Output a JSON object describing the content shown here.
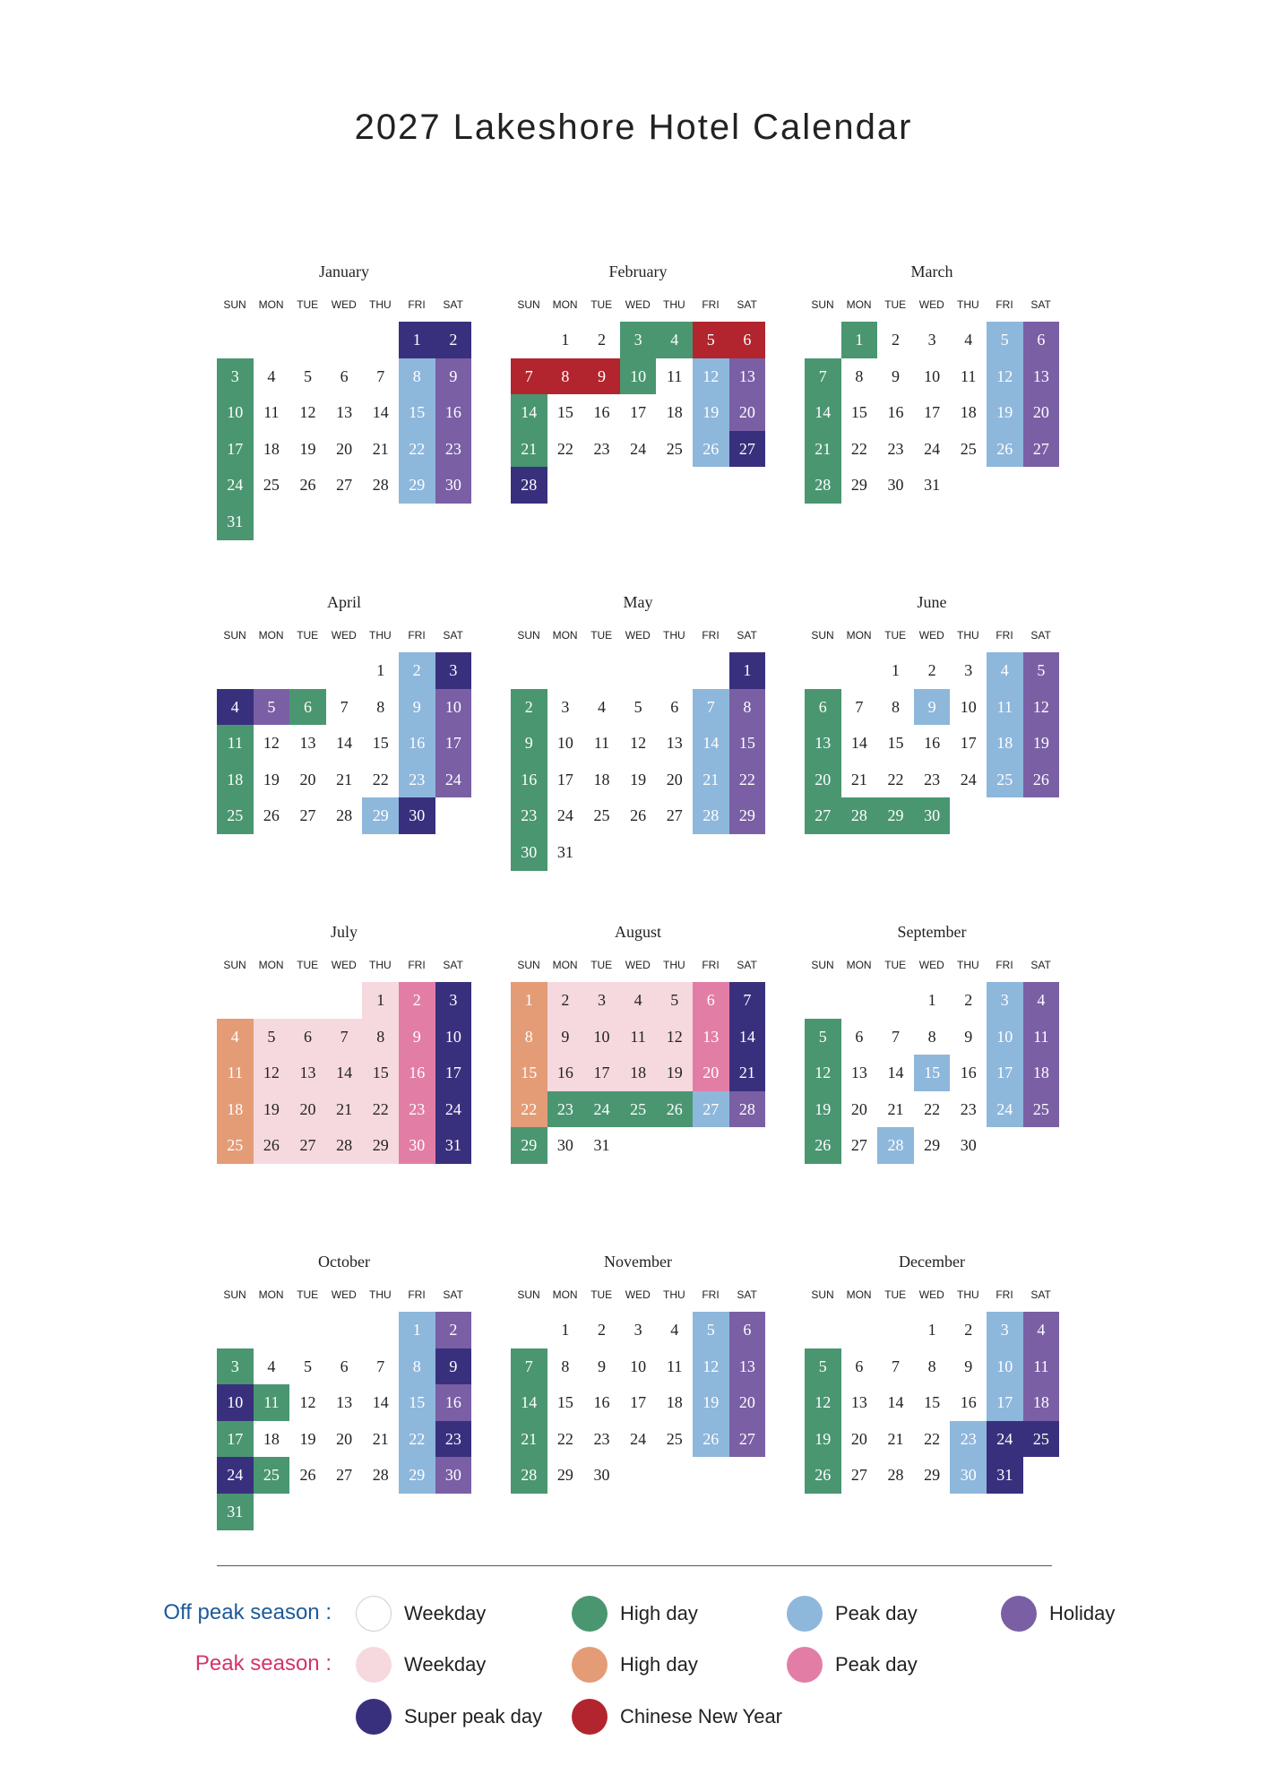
{
  "title": "2027 Lakeshore Hotel Calendar",
  "weekday_labels": [
    "SUN",
    "MON",
    "TUE",
    "WED",
    "THU",
    "FRI",
    "SAT"
  ],
  "colors": {
    "weekday_off": "#ffffff",
    "high_off": "#4a9671",
    "peak_off": "#8eb7dc",
    "holiday_off": "#7a5fa5",
    "weekday_peak": "#f6d9de",
    "high_peak": "#e49c77",
    "peak_peak": "#e27ea6",
    "super_peak": "#39307d",
    "cny": "#b2252e"
  },
  "calendar": [
    {
      "name": "January",
      "start_dow": 5,
      "days": 31,
      "types": [
        "super_peak",
        "super_peak",
        "high_off",
        "weekday_off",
        "weekday_off",
        "weekday_off",
        "weekday_off",
        "peak_off",
        "holiday_off",
        "high_off",
        "weekday_off",
        "weekday_off",
        "weekday_off",
        "weekday_off",
        "peak_off",
        "holiday_off",
        "high_off",
        "weekday_off",
        "weekday_off",
        "weekday_off",
        "weekday_off",
        "peak_off",
        "holiday_off",
        "high_off",
        "weekday_off",
        "weekday_off",
        "weekday_off",
        "weekday_off",
        "peak_off",
        "holiday_off",
        "high_off"
      ]
    },
    {
      "name": "February",
      "start_dow": 1,
      "days": 28,
      "types": [
        "weekday_off",
        "weekday_off",
        "high_off",
        "high_off",
        "cny",
        "cny",
        "cny",
        "cny",
        "cny",
        "high_off",
        "weekday_off",
        "peak_off",
        "holiday_off",
        "high_off",
        "weekday_off",
        "weekday_off",
        "weekday_off",
        "weekday_off",
        "peak_off",
        "holiday_off",
        "high_off",
        "weekday_off",
        "weekday_off",
        "weekday_off",
        "weekday_off",
        "peak_off",
        "super_peak",
        "super_peak"
      ]
    },
    {
      "name": "March",
      "start_dow": 1,
      "days": 31,
      "types": [
        "high_off",
        "weekday_off",
        "weekday_off",
        "weekday_off",
        "peak_off",
        "holiday_off",
        "high_off",
        "weekday_off",
        "weekday_off",
        "weekday_off",
        "weekday_off",
        "peak_off",
        "holiday_off",
        "high_off",
        "weekday_off",
        "weekday_off",
        "weekday_off",
        "weekday_off",
        "peak_off",
        "holiday_off",
        "high_off",
        "weekday_off",
        "weekday_off",
        "weekday_off",
        "weekday_off",
        "peak_off",
        "holiday_off",
        "high_off",
        "weekday_off",
        "weekday_off",
        "weekday_off"
      ]
    },
    {
      "name": "April",
      "start_dow": 4,
      "days": 30,
      "types": [
        "weekday_off",
        "peak_off",
        "super_peak",
        "super_peak",
        "holiday_off",
        "high_off",
        "weekday_off",
        "weekday_off",
        "peak_off",
        "holiday_off",
        "high_off",
        "weekday_off",
        "weekday_off",
        "weekday_off",
        "weekday_off",
        "peak_off",
        "holiday_off",
        "high_off",
        "weekday_off",
        "weekday_off",
        "weekday_off",
        "weekday_off",
        "peak_off",
        "holiday_off",
        "high_off",
        "weekday_off",
        "weekday_off",
        "weekday_off",
        "peak_off",
        "super_peak"
      ]
    },
    {
      "name": "May",
      "start_dow": 6,
      "days": 31,
      "types": [
        "super_peak",
        "high_off",
        "weekday_off",
        "weekday_off",
        "weekday_off",
        "weekday_off",
        "peak_off",
        "holiday_off",
        "high_off",
        "weekday_off",
        "weekday_off",
        "weekday_off",
        "weekday_off",
        "peak_off",
        "holiday_off",
        "high_off",
        "weekday_off",
        "weekday_off",
        "weekday_off",
        "weekday_off",
        "peak_off",
        "holiday_off",
        "high_off",
        "weekday_off",
        "weekday_off",
        "weekday_off",
        "weekday_off",
        "peak_off",
        "holiday_off",
        "high_off",
        "weekday_off"
      ]
    },
    {
      "name": "June",
      "start_dow": 2,
      "days": 30,
      "types": [
        "weekday_off",
        "weekday_off",
        "weekday_off",
        "peak_off",
        "holiday_off",
        "high_off",
        "weekday_off",
        "weekday_off",
        "peak_off",
        "weekday_off",
        "peak_off",
        "holiday_off",
        "high_off",
        "weekday_off",
        "weekday_off",
        "weekday_off",
        "weekday_off",
        "peak_off",
        "holiday_off",
        "high_off",
        "weekday_off",
        "weekday_off",
        "weekday_off",
        "weekday_off",
        "peak_off",
        "holiday_off",
        "high_off",
        "high_off",
        "high_off",
        "high_off"
      ]
    },
    {
      "name": "July",
      "start_dow": 4,
      "days": 31,
      "types": [
        "weekday_peak",
        "peak_peak",
        "super_peak",
        "high_peak",
        "weekday_peak",
        "weekday_peak",
        "weekday_peak",
        "weekday_peak",
        "peak_peak",
        "super_peak",
        "high_peak",
        "weekday_peak",
        "weekday_peak",
        "weekday_peak",
        "weekday_peak",
        "peak_peak",
        "super_peak",
        "high_peak",
        "weekday_peak",
        "weekday_peak",
        "weekday_peak",
        "weekday_peak",
        "peak_peak",
        "super_peak",
        "high_peak",
        "weekday_peak",
        "weekday_peak",
        "weekday_peak",
        "weekday_peak",
        "peak_peak",
        "super_peak"
      ]
    },
    {
      "name": "August",
      "start_dow": 0,
      "days": 31,
      "types": [
        "high_peak",
        "weekday_peak",
        "weekday_peak",
        "weekday_peak",
        "weekday_peak",
        "peak_peak",
        "super_peak",
        "high_peak",
        "weekday_peak",
        "weekday_peak",
        "weekday_peak",
        "weekday_peak",
        "peak_peak",
        "super_peak",
        "high_peak",
        "weekday_peak",
        "weekday_peak",
        "weekday_peak",
        "weekday_peak",
        "peak_peak",
        "super_peak",
        "high_peak",
        "high_off",
        "high_off",
        "high_off",
        "high_off",
        "peak_off",
        "holiday_off",
        "high_off",
        "weekday_off",
        "weekday_off"
      ]
    },
    {
      "name": "September",
      "start_dow": 3,
      "days": 30,
      "types": [
        "weekday_off",
        "weekday_off",
        "peak_off",
        "holiday_off",
        "high_off",
        "weekday_off",
        "weekday_off",
        "weekday_off",
        "weekday_off",
        "peak_off",
        "holiday_off",
        "high_off",
        "weekday_off",
        "weekday_off",
        "peak_off",
        "weekday_off",
        "peak_off",
        "holiday_off",
        "high_off",
        "weekday_off",
        "weekday_off",
        "weekday_off",
        "weekday_off",
        "peak_off",
        "holiday_off",
        "high_off",
        "weekday_off",
        "peak_off",
        "weekday_off",
        "weekday_off"
      ]
    },
    {
      "name": "October",
      "start_dow": 5,
      "days": 31,
      "types": [
        "peak_off",
        "holiday_off",
        "high_off",
        "weekday_off",
        "weekday_off",
        "weekday_off",
        "weekday_off",
        "peak_off",
        "super_peak",
        "super_peak",
        "high_off",
        "weekday_off",
        "weekday_off",
        "weekday_off",
        "peak_off",
        "holiday_off",
        "high_off",
        "weekday_off",
        "weekday_off",
        "weekday_off",
        "weekday_off",
        "peak_off",
        "super_peak",
        "super_peak",
        "high_off",
        "weekday_off",
        "weekday_off",
        "weekday_off",
        "peak_off",
        "holiday_off",
        "high_off"
      ]
    },
    {
      "name": "November",
      "start_dow": 1,
      "days": 30,
      "types": [
        "weekday_off",
        "weekday_off",
        "weekday_off",
        "weekday_off",
        "peak_off",
        "holiday_off",
        "high_off",
        "weekday_off",
        "weekday_off",
        "weekday_off",
        "weekday_off",
        "peak_off",
        "holiday_off",
        "high_off",
        "weekday_off",
        "weekday_off",
        "weekday_off",
        "weekday_off",
        "peak_off",
        "holiday_off",
        "high_off",
        "weekday_off",
        "weekday_off",
        "weekday_off",
        "weekday_off",
        "peak_off",
        "holiday_off",
        "high_off",
        "weekday_off",
        "weekday_off"
      ]
    },
    {
      "name": "December",
      "start_dow": 3,
      "days": 31,
      "types": [
        "weekday_off",
        "weekday_off",
        "peak_off",
        "holiday_off",
        "high_off",
        "weekday_off",
        "weekday_off",
        "weekday_off",
        "weekday_off",
        "peak_off",
        "holiday_off",
        "high_off",
        "weekday_off",
        "weekday_off",
        "weekday_off",
        "weekday_off",
        "peak_off",
        "holiday_off",
        "high_off",
        "weekday_off",
        "weekday_off",
        "weekday_off",
        "peak_off",
        "super_peak",
        "super_peak",
        "high_off",
        "weekday_off",
        "weekday_off",
        "weekday_off",
        "peak_off",
        "super_peak"
      ]
    }
  ],
  "legend": {
    "off_label": "Off peak season :",
    "off_label_color": "#1d5a9a",
    "peak_label": "Peak season :",
    "peak_label_color": "#d3336e",
    "off_items": [
      {
        "key": "weekday_off",
        "label": "Weekday"
      },
      {
        "key": "high_off",
        "label": "High day"
      },
      {
        "key": "peak_off",
        "label": "Peak day"
      },
      {
        "key": "holiday_off",
        "label": "Holiday"
      }
    ],
    "peak_items": [
      {
        "key": "weekday_peak",
        "label": "Weekday"
      },
      {
        "key": "high_peak",
        "label": "High day"
      },
      {
        "key": "peak_peak",
        "label": "Peak day"
      }
    ],
    "extra_items": [
      {
        "key": "super_peak",
        "label": "Super peak day"
      },
      {
        "key": "cny",
        "label": "Chinese New Year"
      }
    ]
  }
}
